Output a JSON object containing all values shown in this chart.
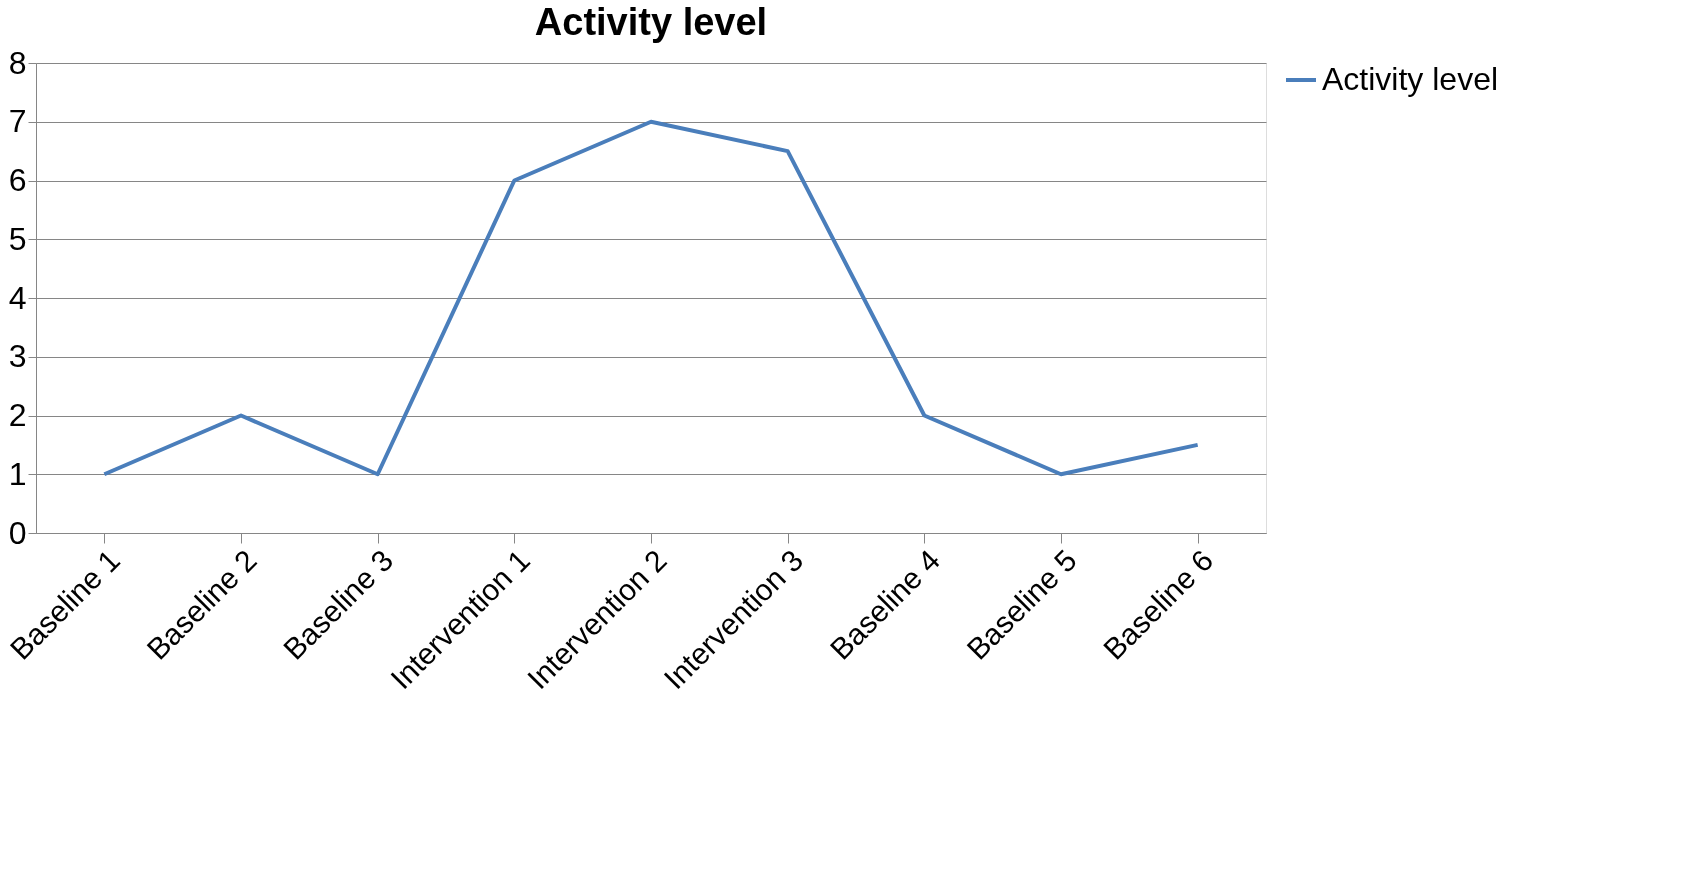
{
  "chart_data": {
    "type": "line",
    "title": "Activity level",
    "categories": [
      "Baseline 1",
      "Baseline 2",
      "Baseline 3",
      "Intervention 1",
      "Intervention 2",
      "Intervention 3",
      "Baseline 4",
      "Baseline 5",
      "Baseline 6"
    ],
    "series": [
      {
        "name": "Activity level",
        "color": "#4a7ebb",
        "values": [
          1,
          2,
          1,
          6,
          7,
          6.5,
          2,
          1,
          1.5
        ]
      }
    ],
    "ylim": [
      0,
      8
    ],
    "yticks": [
      0,
      1,
      2,
      3,
      4,
      5,
      6,
      7,
      8
    ],
    "grid": "y",
    "legend": "right"
  }
}
